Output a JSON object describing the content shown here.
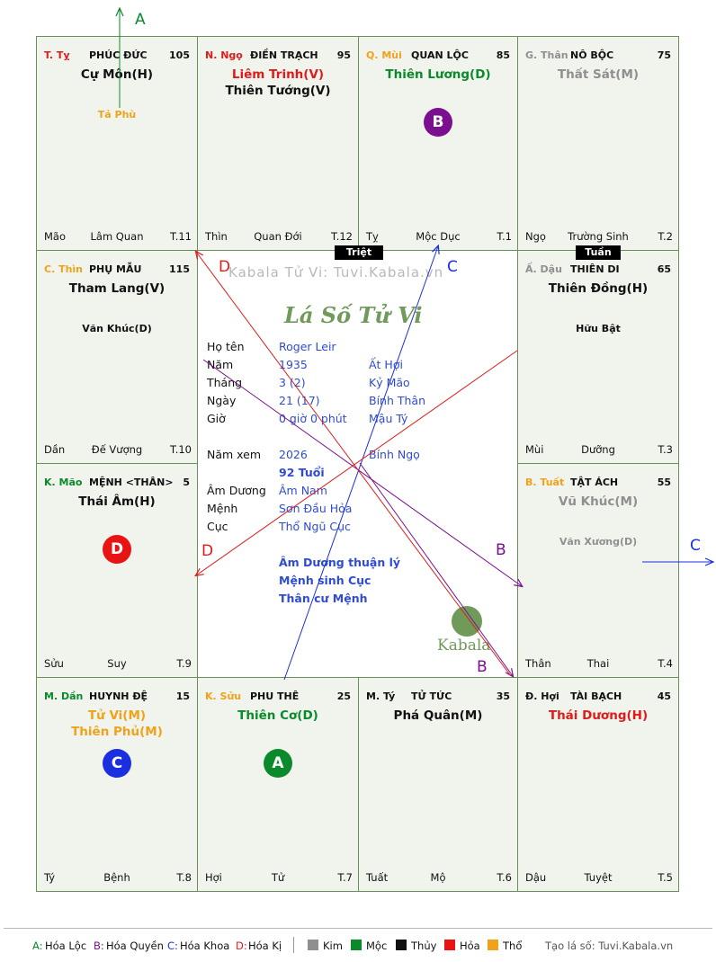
{
  "palaces": [
    {
      "id": "ty",
      "can": "T. Tỵ",
      "can_color": "#e01b1b",
      "name": "PHÚC ĐỨC",
      "num": "105",
      "majors": [
        {
          "t": "Cự Môn(H)",
          "c": "#111"
        }
      ],
      "minors": [
        {
          "t": "Tả Phù",
          "c": "#f0a21a"
        }
      ],
      "foot": [
        "Mão",
        "Lâm Quan",
        "T.11"
      ]
    },
    {
      "id": "ngo",
      "can": "N. Ngọ",
      "can_color": "#e01b1b",
      "name": "ĐIỀN TRẠCH",
      "num": "95",
      "majors": [
        {
          "t": "Liêm Trinh(V)",
          "c": "#e01b1b"
        },
        {
          "t": "Thiên Tướng(V)",
          "c": "#111"
        }
      ],
      "minors": [],
      "foot": [
        "Thìn",
        "Quan Đới",
        "T.12"
      ]
    },
    {
      "id": "mui",
      "can": "Q. Mùi",
      "can_color": "#f0a21a",
      "name": "QUAN LỘC",
      "num": "85",
      "majors": [
        {
          "t": "Thiên Lương(D)",
          "c": "#0a8a2a"
        }
      ],
      "minors": [],
      "foot": [
        "Tỵ",
        "Mộc Dục",
        "T.1"
      ]
    },
    {
      "id": "than",
      "can": "G. Thân",
      "can_color": "#8f8f8f",
      "name": "NÔ BỘC",
      "num": "75",
      "majors": [
        {
          "t": "Thất Sát(M)",
          "c": "#8f8f8f"
        }
      ],
      "minors": [],
      "foot": [
        "Ngọ",
        "Trường Sinh",
        "T.2"
      ]
    },
    {
      "id": "thin",
      "can": "C. Thìn",
      "can_color": "#f0a21a",
      "name": "PHỤ MẪU",
      "num": "115",
      "majors": [
        {
          "t": "Tham Lang(V)",
          "c": "#111"
        }
      ],
      "minors": [
        {
          "t": "Văn Khúc(D)",
          "c": "#111"
        }
      ],
      "foot": [
        "Dần",
        "Đế Vượng",
        "T.10"
      ]
    },
    {
      "id": "dau",
      "can": "Ấ. Dậu",
      "can_color": "#8f8f8f",
      "name": "THIÊN DI",
      "num": "65",
      "majors": [
        {
          "t": "Thiên Đồng(H)",
          "c": "#111"
        }
      ],
      "minors": [
        {
          "t": "Hữu Bật",
          "c": "#111"
        }
      ],
      "foot": [
        "Mùi",
        "Dưỡng",
        "T.3"
      ]
    },
    {
      "id": "mao",
      "can": "K. Mão",
      "can_color": "#0a8a2a",
      "name": "MỆNH <THÂN>",
      "num": "5",
      "majors": [
        {
          "t": "Thái Âm(H)",
          "c": "#111"
        }
      ],
      "minors": [],
      "foot": [
        "Sửu",
        "Suy",
        "T.9"
      ]
    },
    {
      "id": "tuat",
      "can": "B. Tuất",
      "can_color": "#f0a21a",
      "name": "TẬT ÁCH",
      "num": "55",
      "majors": [
        {
          "t": "Vũ Khúc(M)",
          "c": "#8f8f8f"
        }
      ],
      "minors": [
        {
          "t": "Văn Xương(D)",
          "c": "#8f8f8f"
        }
      ],
      "foot": [
        "Thân",
        "Thai",
        "T.4"
      ]
    },
    {
      "id": "dan",
      "can": "M. Dần",
      "can_color": "#0a8a2a",
      "name": "HUYNH ĐỆ",
      "num": "15",
      "majors": [
        {
          "t": "Tử Vi(M)",
          "c": "#f0a21a"
        },
        {
          "t": "Thiên Phủ(M)",
          "c": "#f0a21a"
        }
      ],
      "minors": [],
      "foot": [
        "Tý",
        "Bệnh",
        "T.8"
      ]
    },
    {
      "id": "suu",
      "can": "K. Sửu",
      "can_color": "#f0a21a",
      "name": "PHU THÊ",
      "num": "25",
      "majors": [
        {
          "t": "Thiên Cơ(D)",
          "c": "#0a8a2a"
        }
      ],
      "minors": [],
      "foot": [
        "Hợi",
        "Tử",
        "T.7"
      ]
    },
    {
      "id": "ti",
      "can": "M. Tý",
      "can_color": "#111",
      "name": "TỬ TỨC",
      "num": "35",
      "majors": [
        {
          "t": "Phá Quân(M)",
          "c": "#111"
        }
      ],
      "minors": [],
      "foot": [
        "Tuất",
        "Mộ",
        "T.6"
      ]
    },
    {
      "id": "hoi",
      "can": "Đ. Hợi",
      "can_color": "#111",
      "name": "TÀI BẠCH",
      "num": "45",
      "majors": [
        {
          "t": "Thái Dương(H)",
          "c": "#e01b1b"
        }
      ],
      "minors": [],
      "foot": [
        "Dậu",
        "Tuyệt",
        "T.5"
      ]
    }
  ],
  "circles": [
    {
      "palace": "mui",
      "letter": "B",
      "color": "#7a0f8f"
    },
    {
      "palace": "mao",
      "letter": "D",
      "color": "#e81414"
    },
    {
      "palace": "dan",
      "letter": "C",
      "color": "#1a2fe0"
    },
    {
      "palace": "suu",
      "letter": "A",
      "color": "#0a8a2a"
    }
  ],
  "tags": {
    "triet": "Triệt",
    "tuan": "Tuần"
  },
  "center": {
    "watermark": "Kabala Tử Vi: Tuvi.Kabala.vn",
    "logo": "Lá Số Tử Vi",
    "brand": "Kabala",
    "rows": [
      {
        "label": "Họ tên",
        "v1": "Roger Leir",
        "v2": ""
      },
      {
        "label": "Năm",
        "v1": "1935",
        "v2": "Ất Hợi"
      },
      {
        "label": "Tháng",
        "v1": "3  (2)",
        "v2": "Kỷ Mão"
      },
      {
        "label": "Ngày",
        "v1": "21  (17)",
        "v2": "Bính Thân"
      },
      {
        "label": "Giờ",
        "v1": "0 giờ 0 phút",
        "v2": "Mậu Tý"
      },
      {
        "label": "Năm xem",
        "v1": "2026",
        "v2": "Bính Ngọ"
      },
      {
        "label": "",
        "v1": "92 Tuổi",
        "v2": ""
      },
      {
        "label": "Âm Dương",
        "v1": "Âm Nam",
        "v2": ""
      },
      {
        "label": "Mệnh",
        "v1": "Sơn Đầu Hỏa",
        "v2": ""
      },
      {
        "label": "Cục",
        "v1": "Thổ Ngũ Cục",
        "v2": ""
      }
    ],
    "notes": [
      "Âm Dương thuận lý",
      "Mệnh sinh Cục",
      "Thân cư Mệnh"
    ]
  },
  "arrows": {
    "A": {
      "label": "A",
      "color": "#0a8a2a"
    },
    "B": {
      "label": "B",
      "color": "#7a0f8f"
    },
    "C": {
      "label": "C",
      "color": "#1a2fe0"
    },
    "D": {
      "label": "D",
      "color": "#e01b1b"
    }
  },
  "legend": {
    "items": [
      {
        "k": "A:",
        "v": "Hóa Lộc",
        "c": "#0a8a2a"
      },
      {
        "k": "B:",
        "v": "Hóa Quyền",
        "c": "#7a0f8f"
      },
      {
        "k": "C:",
        "v": "Hóa Khoa",
        "c": "#1a2fe0"
      },
      {
        "k": "D:",
        "v": "Hóa Kị",
        "c": "#e01b1b"
      }
    ],
    "elements": [
      {
        "name": "Kim",
        "color": "#8f8f8f"
      },
      {
        "name": "Mộc",
        "color": "#0a8a2a"
      },
      {
        "name": "Thủy",
        "color": "#111111"
      },
      {
        "name": "Hỏa",
        "color": "#e81414"
      },
      {
        "name": "Thổ",
        "color": "#f0a21a"
      }
    ],
    "credit": "Tạo lá số: Tuvi.Kabala.vn"
  }
}
